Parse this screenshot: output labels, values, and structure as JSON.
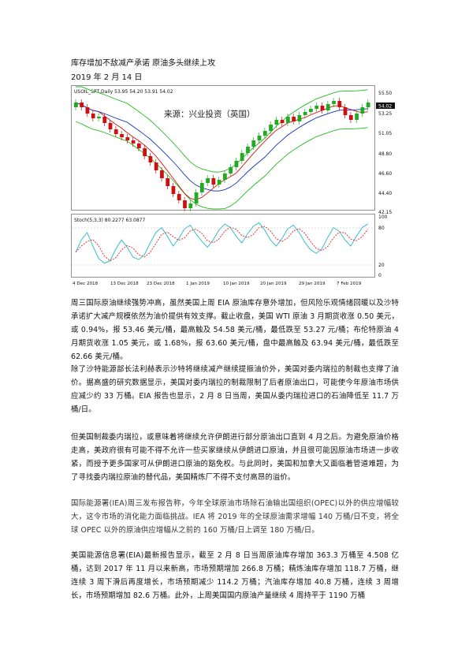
{
  "header": {
    "title": "库存增加不敌减产承诺 原油多头继续上攻",
    "date": "2019 年 2 月 14 日"
  },
  "chart": {
    "symbol_label": "USOIL_SPT,Daily 53.95 54.20 53.91 54.02",
    "watermark": "来源：兴业投资（英国）",
    "stoch_label": "Stoch(5,3,3) 80.2277 63.0877",
    "price_ticks": [
      "55.50",
      "53.25",
      "51.05",
      "48.80",
      "46.60",
      "44.40",
      "42.15"
    ],
    "current_price": "54.02",
    "stoch_ticks": [
      "100",
      "80",
      "20",
      "0"
    ],
    "date_ticks": [
      "4 Dec 2018",
      "13 Dec 2018",
      "23 Dec 2018",
      "1 Jan 2019",
      "10 Jan 2019",
      "20 Jan 2019",
      "29 Jan 2019",
      "7 Feb 2019"
    ],
    "colors": {
      "up": "#22aa22",
      "down": "#cc1111",
      "ma_fast": "#e01010",
      "ma_slow": "#1030c0",
      "band": "#22bb22",
      "stoch_k": "#20b8c8",
      "stoch_d": "#e02020"
    }
  },
  "paragraphs": [
    "周三国际原油继续强势冲高，虽然美国上周 EIA 原油库存意外增加，但风险乐观情绪回暖以及沙特承诺扩大减产规模依然为油价提供有效支撑。截止收盘，美国 WTI 原油 3 月期货收涨 0.50 美元，或 0.94%，报 53.46 美元/桶，最高触及 54.58 美元/桶，最低跌至 53.27 元/桶；布伦特原油 4 月期货收涨 1.05 美元，或 1.68%，报 63.60 美元/桶，盘中最高触及 63.94 美元/桶，最低跌至 62.66 美元/桶。",
    "除了沙特能源部长法利赫表示沙特将继续减产继续提振油价外，美国对委内瑞拉的制裁也支撑了油价。据高盛的研究数据显示，美国对委内瑞拉的制裁限制了后者原油出口，可能使今年原油市场供应减少约 33 万桶。EIA 报告也显示，2 月 8 日当周，美国从委内瑞拉进口的石油降低至 11.7 万桶/日。",
    "但美国制裁委内瑞拉，或意味着将继续允许伊朗进行部分原油出口直到 4 月之后。为避免原油价格走高，美政府很有可能不得不允许一些买家继续从伊朗进口原油，并且很可能因原油市场进一步收紧，而授予更多国家可从伊朗进口原油的豁免权。与此同时，美国和加拿大又面临着管道难题，为了寻找委内瑞拉原油的替代品，美国精炼厂不得不支付高昂的溢价。",
    "国际能源署(IEA)周三发布报告称，今年全球原油市场除石油输出国组织(OPEC)以外的供应增幅较大，这令市场的消化能力面临挑战。IEA 将 2019 年的全球原油需求增幅 140 万桶/日不变，将全球 OPEC 以外的原油供应增幅从之前的 160 万桶/日上调至 180 万桶/日。",
    "美国能源信息署(EIA)最新报告显示，截至 2 月 8 日当周原油库存增加 363.3 万桶至 4.508 亿桶，达到 2017 年 11 月以来新高，市场预期增加 266.8 万桶；精炼油库存增加 118.7 万桶，继连续 3 周下滑后再度增长，市场预期减少 114.2 万桶；汽油库存增加 40.8 万桶，连续 3 周增长，市场预期增加 82.6 万桶。此外，上周美国国内原油产量继续 4 周持平于 1190 万桶"
  ]
}
